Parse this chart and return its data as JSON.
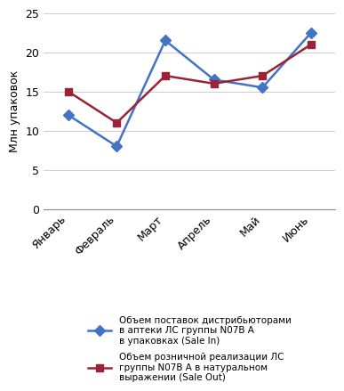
{
  "months": [
    "Январь",
    "Февраль",
    "Март",
    "Апрель",
    "Май",
    "Июнь"
  ],
  "sale_in": [
    12.0,
    8.0,
    21.5,
    16.5,
    15.5,
    22.5
  ],
  "sale_out": [
    15.0,
    11.0,
    17.0,
    16.0,
    17.0,
    21.0
  ],
  "sale_in_color": "#4472C4",
  "sale_out_color": "#9B2335",
  "ylim": [
    0,
    25
  ],
  "yticks": [
    0,
    5,
    10,
    15,
    20,
    25
  ],
  "ylabel": "Млн упаковок",
  "legend_sale_in": "Объем поставок дистрибьюторами\nв аптеки ЛС группы N07B А\nв упаковках (Sale In)",
  "legend_sale_out": "Объем розничной реализации ЛС\nгруппы N07B А в натуральном\nвыражении (Sale Out)"
}
